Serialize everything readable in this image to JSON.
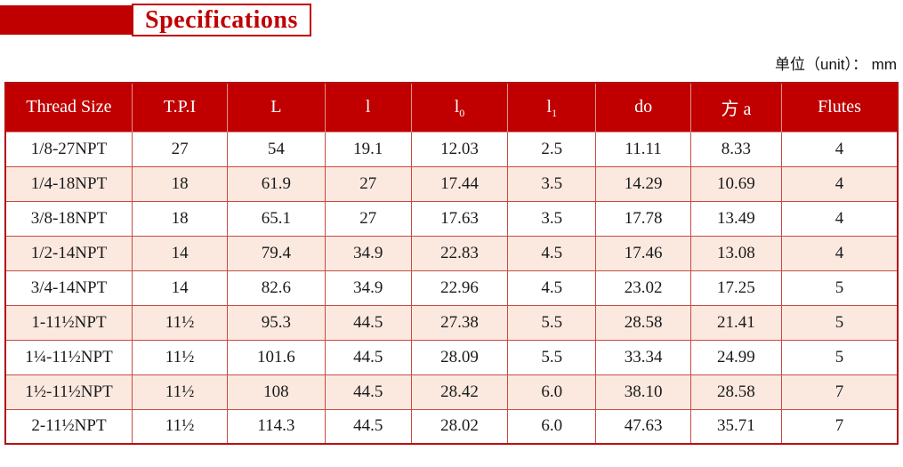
{
  "page": {
    "title": "Specifications",
    "unit_label": "单位（unit）： mm"
  },
  "colors": {
    "accent_red": "#c00000",
    "grid_red": "#c94a42",
    "alt_row_pink": "#fbe9e0"
  },
  "table": {
    "headers": [
      {
        "key": "thread-size",
        "text": "Thread Size"
      },
      {
        "key": "tpi",
        "text": "T.P.I"
      },
      {
        "key": "L",
        "text": "L"
      },
      {
        "key": "l",
        "text": "l"
      },
      {
        "key": "l0",
        "text": "l",
        "sub": "0"
      },
      {
        "key": "l1",
        "text": "l",
        "sub": "1"
      },
      {
        "key": "do",
        "text": "do"
      },
      {
        "key": "fang-a",
        "text": "方 a"
      },
      {
        "key": "flutes",
        "text": "Flutes"
      }
    ],
    "rows": [
      [
        "1/8-27NPT",
        "27",
        "54",
        "19.1",
        "12.03",
        "2.5",
        "11.11",
        "8.33",
        "4"
      ],
      [
        "1/4-18NPT",
        "18",
        "61.9",
        "27",
        "17.44",
        "3.5",
        "14.29",
        "10.69",
        "4"
      ],
      [
        "3/8-18NPT",
        "18",
        "65.1",
        "27",
        "17.63",
        "3.5",
        "17.78",
        "13.49",
        "4"
      ],
      [
        "1/2-14NPT",
        "14",
        "79.4",
        "34.9",
        "22.83",
        "4.5",
        "17.46",
        "13.08",
        "4"
      ],
      [
        "3/4-14NPT",
        "14",
        "82.6",
        "34.9",
        "22.96",
        "4.5",
        "23.02",
        "17.25",
        "5"
      ],
      [
        "1-11½NPT",
        "11½",
        "95.3",
        "44.5",
        "27.38",
        "5.5",
        "28.58",
        "21.41",
        "5"
      ],
      [
        "1¼-11½NPT",
        "11½",
        "101.6",
        "44.5",
        "28.09",
        "5.5",
        "33.34",
        "24.99",
        "5"
      ],
      [
        "1½-11½NPT",
        "11½",
        "108",
        "44.5",
        "28.42",
        "6.0",
        "38.10",
        "28.58",
        "7"
      ],
      [
        "2-11½NPT",
        "11½",
        "114.3",
        "44.5",
        "28.02",
        "6.0",
        "47.63",
        "35.71",
        "7"
      ]
    ]
  }
}
